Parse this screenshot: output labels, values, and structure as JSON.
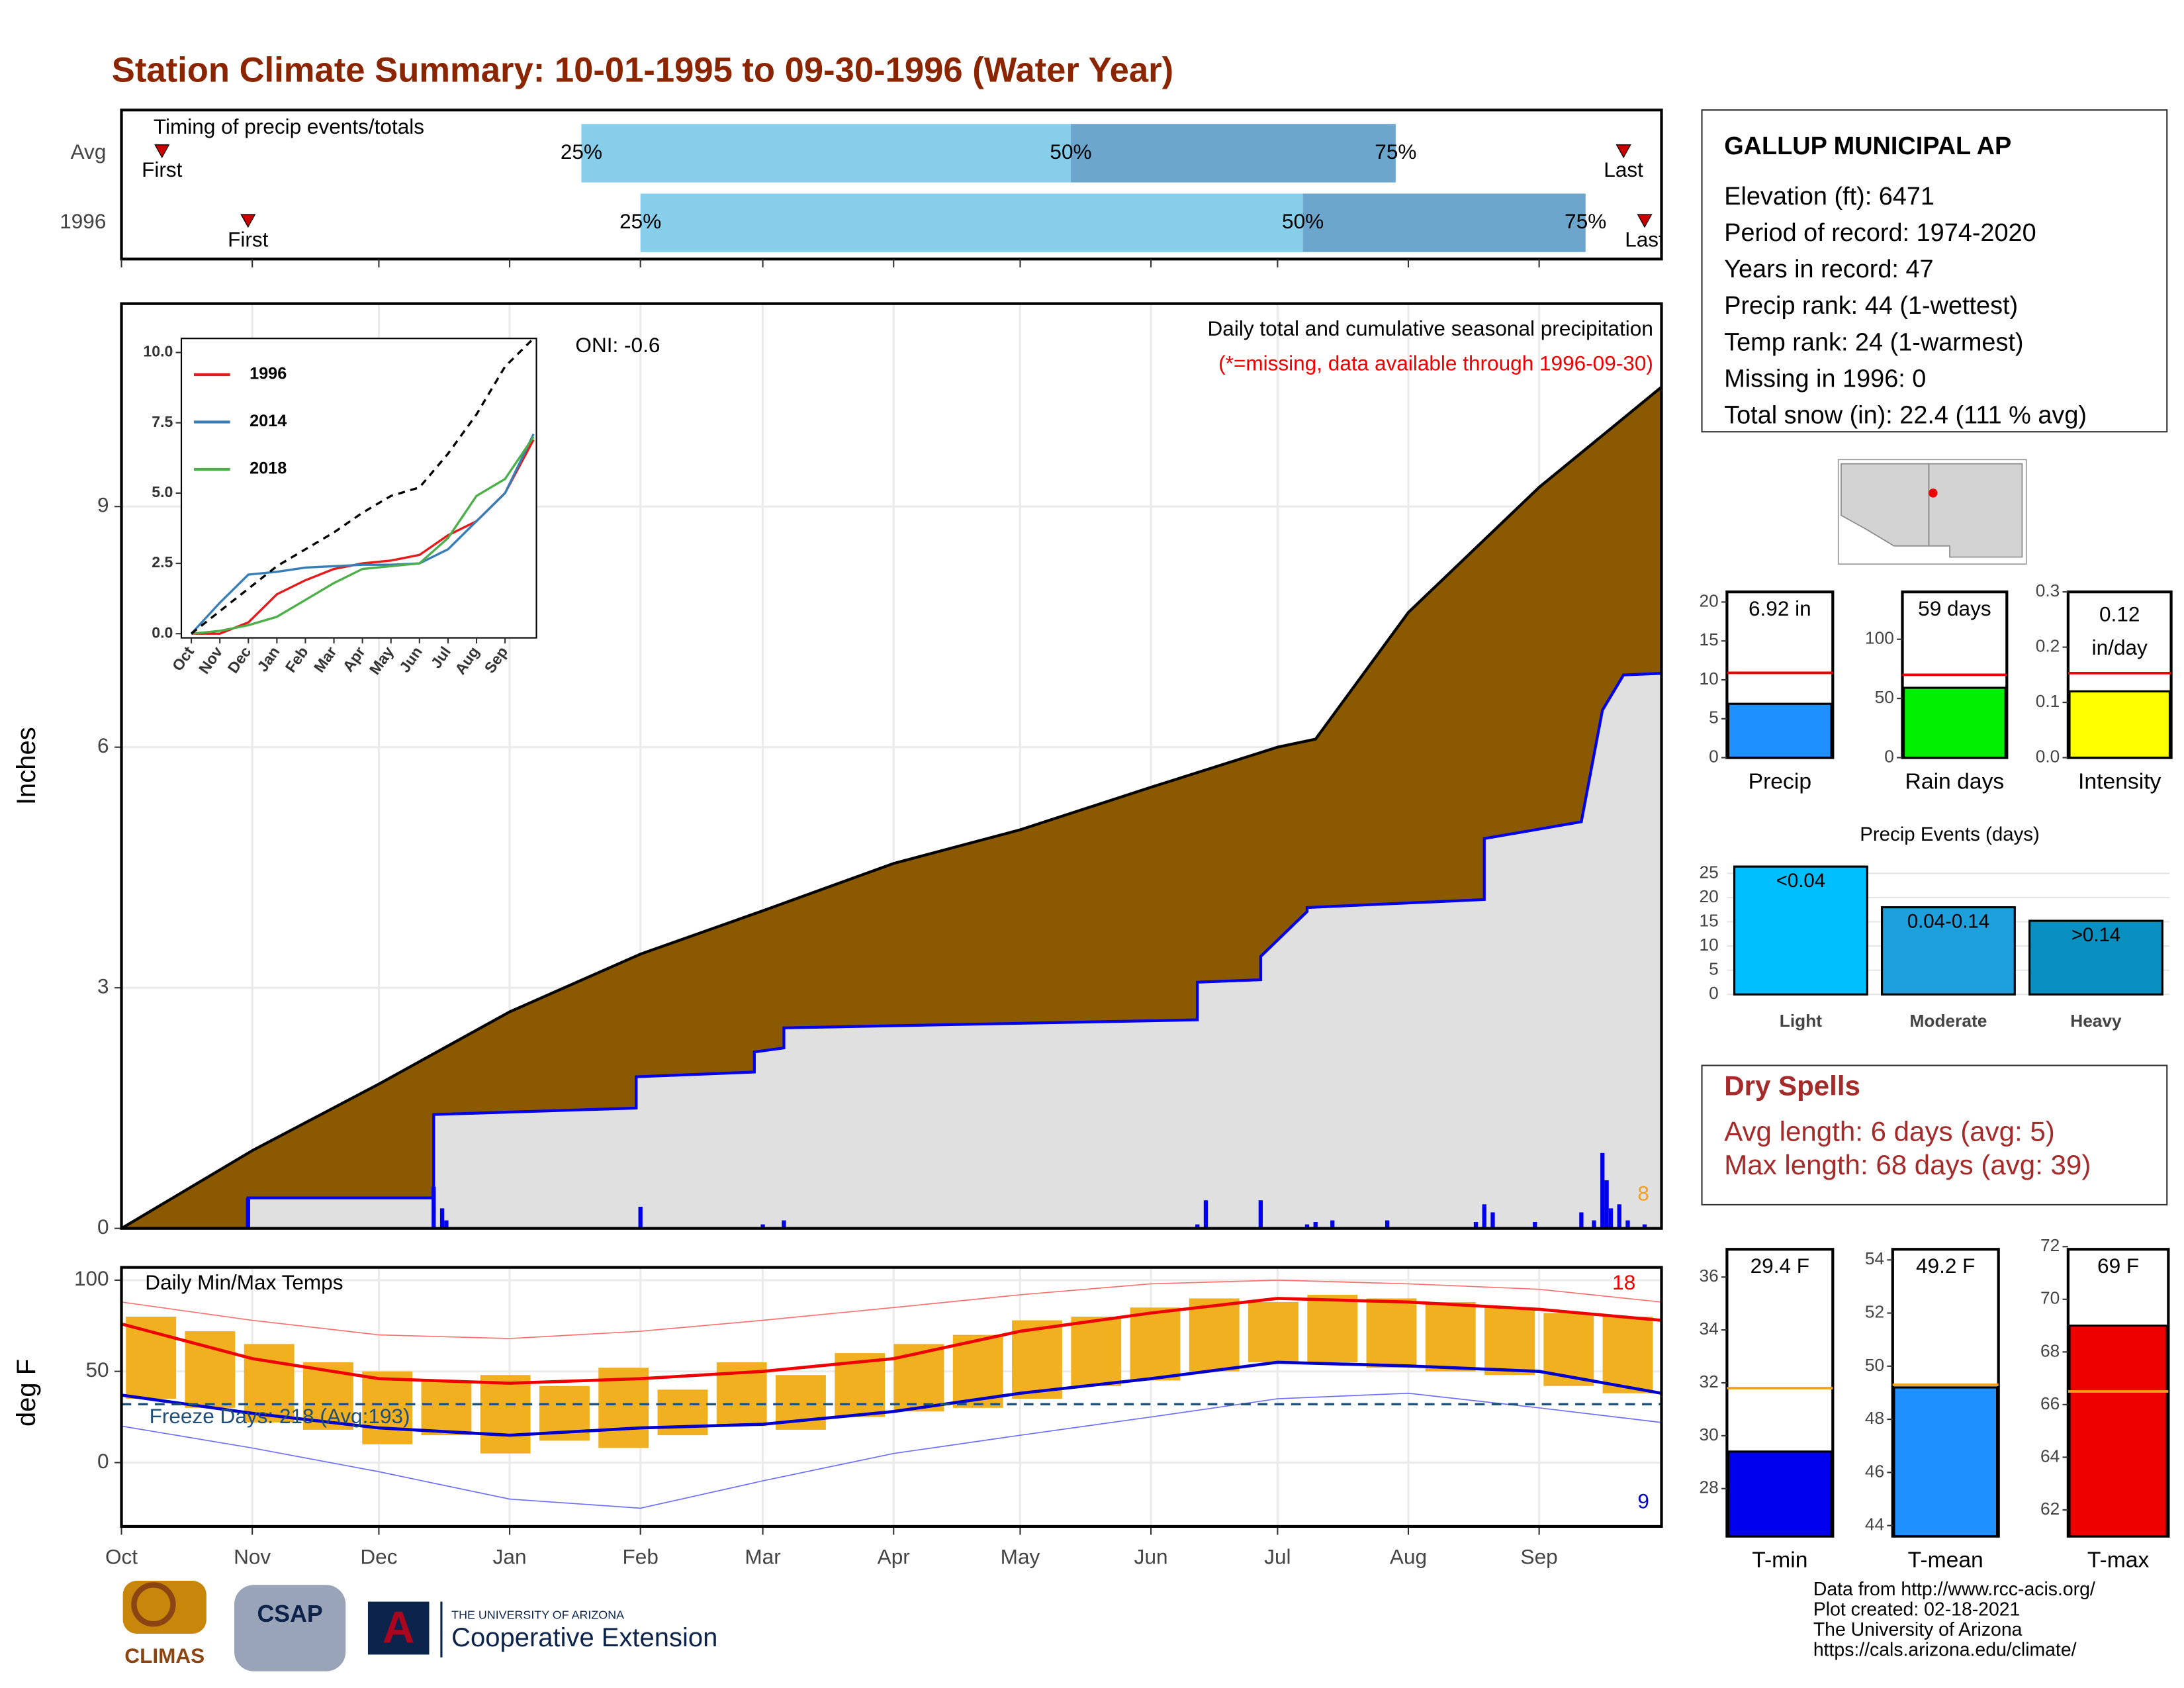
{
  "title": "Station Climate Summary: 10-01-1995 to 09-30-1996 (Water Year)",
  "info": {
    "station": "GALLUP MUNICIPAL AP",
    "lines": [
      "Elevation (ft): 6471",
      "Period of record: 1974-2020",
      "Years in record: 47",
      "Precip rank: 44 (1-wettest)",
      "Temp rank: 24 (1-warmest)",
      "Missing in 1996: 0",
      "Total snow (in): 22.4 (111 % avg)"
    ]
  },
  "dry_spells": {
    "title": "Dry Spells",
    "lines": [
      "Avg length: 6 days (avg: 5)",
      "Max length: 68 days (avg: 39)"
    ]
  },
  "footer": [
    "Data from http://www.rcc-acis.org/",
    "Plot created: 02-18-2021",
    "The University of Arizona",
    "https://cals.arizona.edu/climate/"
  ],
  "logos": [
    "CLIMAS",
    "CSAP",
    "THE UNIVERSITY OF ARIZONA",
    "Cooperative Extension"
  ],
  "chart_data": [
    {
      "type": "timeline",
      "title": "Timing of precip events/totals",
      "categories": [
        "Avg",
        "1996"
      ],
      "first": [
        9.6,
        30
      ],
      "p25": [
        109,
        123
      ],
      "p50": [
        225,
        280
      ],
      "p75": [
        302,
        347
      ],
      "last": [
        356,
        361
      ],
      "first_label": "First",
      "last_label": "Last",
      "percent_labels": [
        "25%",
        "50%",
        "75%"
      ],
      "colors": [
        "#87ceeb",
        "#6ca6cd"
      ],
      "marker_color": "#cc0000",
      "xlim": [
        0,
        365
      ],
      "xticks": [
        0,
        31,
        61,
        92,
        123,
        152,
        183,
        213,
        244,
        274,
        305,
        336
      ]
    },
    {
      "type": "area",
      "title": "Daily total and cumulative seasonal precipitation",
      "subtitle": "(*=missing, data available through 1996-09-30)",
      "annotation": "ONI: -0.6",
      "count_label": "8",
      "y_label": "Inches",
      "xlim": [
        0,
        365
      ],
      "ylim": [
        0,
        11.53
      ],
      "yticks": [
        0,
        3,
        6,
        9
      ],
      "xticks": [
        0,
        31,
        61,
        92,
        123,
        152,
        183,
        213,
        244,
        274,
        305,
        336
      ],
      "grid": true,
      "average": {
        "color": "#8b5a00",
        "x": [
          0,
          31,
          61,
          92,
          123,
          152,
          183,
          213,
          244,
          274,
          283,
          305,
          336,
          365
        ],
        "values": [
          0,
          0.97,
          1.8,
          2.7,
          3.42,
          3.96,
          4.55,
          4.97,
          5.5,
          6.0,
          6.1,
          7.68,
          9.24,
          10.49
        ]
      },
      "observed": {
        "color": "#0000ee",
        "fill": "#e0e0e0",
        "x": [
          0,
          30,
          30,
          74,
          74,
          122,
          122,
          150,
          150,
          157,
          157,
          255,
          255,
          270,
          270,
          281,
          281,
          323,
          323,
          346,
          346,
          351,
          351,
          356,
          356,
          365
        ],
        "values": [
          0,
          0,
          0.38,
          0.38,
          1.42,
          1.5,
          1.89,
          1.95,
          2.2,
          2.25,
          2.5,
          2.6,
          3.07,
          3.1,
          3.39,
          3.95,
          4.0,
          4.1,
          4.86,
          5.07,
          5.07,
          6.46,
          6.46,
          6.9,
          6.9,
          6.92
        ]
      },
      "daily": {
        "color": "#0000ee",
        "x": [
          30,
          74,
          76,
          77,
          123,
          152,
          157,
          255,
          257,
          270,
          281,
          283,
          287,
          300,
          321,
          323,
          325,
          335,
          346,
          349,
          351,
          352,
          353,
          355,
          357,
          361
        ],
        "values": [
          0.38,
          0.52,
          0.25,
          0.1,
          0.27,
          0.05,
          0.1,
          0.05,
          0.35,
          0.35,
          0.05,
          0.08,
          0.1,
          0.1,
          0.08,
          0.3,
          0.2,
          0.08,
          0.2,
          0.1,
          0.94,
          0.6,
          0.25,
          0.3,
          0.1,
          0.05
        ]
      }
    },
    {
      "type": "line",
      "x": [
        0,
        1,
        2,
        3,
        4,
        5,
        6,
        7,
        8,
        9,
        10,
        11,
        12
      ],
      "xlim": [
        -0.35,
        12.1
      ],
      "ylim": [
        -0.15,
        10.5
      ],
      "xticks": [
        {
          "value": 0,
          "label": "Oct"
        },
        {
          "value": 1,
          "label": "Nov"
        },
        {
          "value": 2,
          "label": "Dec"
        },
        {
          "value": 3,
          "label": "Jan"
        },
        {
          "value": 4,
          "label": "Feb"
        },
        {
          "value": 5,
          "label": "Mar"
        },
        {
          "value": 6,
          "label": "Apr"
        },
        {
          "value": 7,
          "label": "May"
        },
        {
          "value": 8,
          "label": "Jun"
        },
        {
          "value": 9,
          "label": "Jul"
        },
        {
          "value": 10,
          "label": "Aug"
        },
        {
          "value": 11,
          "label": "Sep"
        }
      ],
      "yticks": [
        {
          "value": 0,
          "label": "0.0"
        },
        2.5,
        {
          "value": 5,
          "label": "5.0"
        },
        7.5,
        {
          "value": 10,
          "label": "10.0"
        }
      ],
      "reference": {
        "color": "#000000",
        "values": [
          0,
          0.8,
          1.6,
          2.4,
          3.0,
          3.6,
          4.3,
          4.9,
          5.2,
          6.4,
          7.8,
          9.5,
          10.5
        ]
      },
      "series": [
        {
          "name": "1996",
          "color": "#e41a1c",
          "values": [
            0,
            0,
            0.4,
            1.4,
            1.9,
            2.3,
            2.5,
            2.6,
            2.8,
            3.5,
            4.0,
            5.0,
            6.9
          ]
        },
        {
          "name": "2014",
          "color": "#377eb8",
          "values": [
            0,
            1.1,
            2.1,
            2.2,
            2.35,
            2.4,
            2.45,
            2.45,
            2.5,
            3.0,
            4.0,
            5.0,
            7.1
          ]
        },
        {
          "name": "2018",
          "color": "#4daf4a",
          "values": [
            0,
            0.1,
            0.3,
            0.6,
            1.2,
            1.8,
            2.3,
            2.4,
            2.5,
            3.4,
            4.9,
            5.5,
            7.0
          ]
        }
      ]
    },
    {
      "type": "temperature",
      "title": "Daily Min/Max Temps",
      "annotation": "Freeze Days: 218 (Avg:193)",
      "max_label": "18",
      "min_label": "9",
      "y_label": "deg F",
      "xlim": [
        0,
        365
      ],
      "ylim": [
        -35,
        107
      ],
      "yticks": [
        0,
        50,
        100
      ],
      "freeze_line": 32,
      "grid": true,
      "xticks": [
        {
          "value": 0,
          "label": "Oct"
        },
        {
          "value": 31,
          "label": "Nov"
        },
        {
          "value": 61,
          "label": "Dec"
        },
        {
          "value": 92,
          "label": "Jan"
        },
        {
          "value": 123,
          "label": "Feb"
        },
        {
          "value": 152,
          "label": "Mar"
        },
        {
          "value": 183,
          "label": "Apr"
        },
        {
          "value": 213,
          "label": "May"
        },
        {
          "value": 244,
          "label": "Jun"
        },
        {
          "value": 274,
          "label": "Jul"
        },
        {
          "value": 305,
          "label": "Aug"
        },
        {
          "value": 336,
          "label": "Sep"
        }
      ],
      "x": [
        0,
        31,
        61,
        92,
        123,
        152,
        183,
        213,
        244,
        274,
        305,
        336,
        365
      ],
      "normal_max": {
        "color": "#ee0000",
        "values": [
          76,
          57,
          46,
          43.5,
          46,
          50,
          57,
          72,
          82,
          90,
          88,
          84,
          78
        ]
      },
      "normal_min": {
        "color": "#0000cc",
        "values": [
          37,
          27,
          19,
          15,
          19,
          21,
          28,
          38,
          46,
          55,
          53,
          50,
          38
        ]
      },
      "record_max": {
        "color": "#ff7070",
        "values": [
          88,
          78,
          70,
          68,
          72,
          78,
          85,
          92,
          98,
          100,
          98,
          95,
          88
        ]
      },
      "record_min": {
        "color": "#7070ff",
        "values": [
          20,
          8,
          -5,
          -20,
          -25,
          -10,
          5,
          15,
          25,
          35,
          38,
          30,
          22
        ]
      },
      "bars": {
        "color": "#f0b020",
        "x": [
          7,
          21,
          35,
          49,
          63,
          77,
          91,
          105,
          119,
          133,
          147,
          161,
          175,
          189,
          203,
          217,
          231,
          245,
          259,
          273,
          287,
          301,
          315,
          329,
          343,
          357
        ],
        "min": [
          35,
          30,
          22,
          18,
          10,
          15,
          5,
          12,
          8,
          15,
          20,
          18,
          25,
          28,
          30,
          35,
          42,
          45,
          50,
          55,
          55,
          52,
          50,
          48,
          42,
          38
        ],
        "max": [
          80,
          72,
          65,
          55,
          50,
          45,
          48,
          42,
          52,
          40,
          55,
          48,
          60,
          65,
          70,
          78,
          80,
          85,
          90,
          88,
          92,
          90,
          88,
          85,
          82,
          80
        ]
      }
    },
    {
      "type": "gauge",
      "category": "Precip",
      "value": 6.92,
      "average": 10.9,
      "value_labels": [
        "6.92 in"
      ],
      "color": "#1e90ff",
      "avg_color": "#ee0000",
      "ylim": [
        0,
        21.3
      ],
      "yticks": [
        0,
        5,
        10,
        15,
        20
      ]
    },
    {
      "type": "gauge",
      "category": "Rain days",
      "value": 59,
      "average": 70,
      "value_labels": [
        "59 days"
      ],
      "color": "#00ee00",
      "avg_color": "#ee0000",
      "ylim": [
        0,
        140
      ],
      "yticks": [
        0,
        50,
        100
      ]
    },
    {
      "type": "gauge",
      "category": "Intensity",
      "value": 0.12,
      "average": 0.153,
      "unit_label": "in/day",
      "color": "#ffff00",
      "avg_color": "#ee0000",
      "ylim": [
        0,
        0.3
      ],
      "yticks": [
        {
          "value": 0,
          "label": "0.0"
        },
        0.1,
        0.2,
        0.3
      ]
    },
    {
      "type": "bar",
      "title": "Precip Events (days)",
      "categories": [
        "Light",
        "Moderate",
        "Heavy"
      ],
      "values": [
        26.4,
        18,
        15.2
      ],
      "bar_labels": [
        "<0.04",
        "0.04-0.14",
        ">0.14"
      ],
      "colors": [
        "#00bfff",
        "#1ea0dc",
        "#0a90c0"
      ],
      "ylim": [
        -1.15,
        27.9
      ],
      "yticks": [
        0,
        5,
        10,
        15,
        20,
        25
      ],
      "grid": true
    },
    {
      "type": "gauge",
      "category": "T-min",
      "value": 29.4,
      "average": 31.8,
      "value_labels": [
        "29.4 F"
      ],
      "color": "#0000ee",
      "avg_color": "#f0a020",
      "ylim": [
        26.2,
        37.05
      ],
      "yticks": [
        28,
        30,
        32,
        34,
        36
      ]
    },
    {
      "type": "gauge",
      "category": "T-mean",
      "value": 49.2,
      "average": 49.3,
      "value_labels": [
        "49.2 F"
      ],
      "color": "#1e90ff",
      "avg_color": "#f0a020",
      "ylim": [
        43.6,
        54.4
      ],
      "yticks": [
        44,
        46,
        48,
        50,
        52,
        54
      ]
    },
    {
      "type": "gauge",
      "category": "T-max",
      "value": 69,
      "average": 66.5,
      "value_labels": [
        "69 F"
      ],
      "color": "#ee0000",
      "avg_color": "#f0a020",
      "ylim": [
        61,
        71.9
      ],
      "yticks": [
        62,
        64,
        66,
        68,
        70,
        72
      ]
    }
  ]
}
